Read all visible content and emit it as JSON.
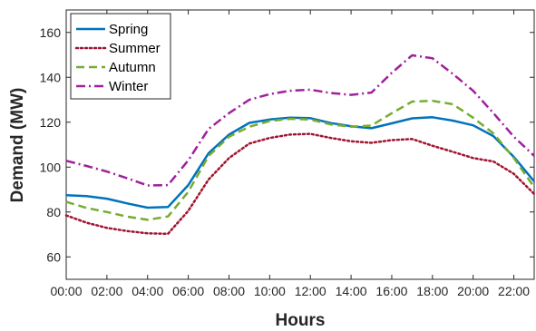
{
  "chart_data": {
    "type": "line",
    "title": "",
    "xlabel": "Hours",
    "ylabel": "Demand (MW)",
    "x": [
      0,
      1,
      2,
      3,
      4,
      5,
      6,
      7,
      8,
      9,
      10,
      11,
      12,
      13,
      14,
      15,
      16,
      17,
      18,
      19,
      20,
      21,
      22,
      23
    ],
    "xticks": [
      0,
      2,
      4,
      6,
      8,
      10,
      12,
      14,
      16,
      18,
      20,
      22
    ],
    "xtick_labels": [
      "00:00",
      "02:00",
      "04:00",
      "06:00",
      "08:00",
      "10:00",
      "12:00",
      "14:00",
      "16:00",
      "18:00",
      "20:00",
      "22:00"
    ],
    "xlim": [
      0,
      23
    ],
    "ylim": [
      50,
      170
    ],
    "yticks": [
      60,
      80,
      100,
      120,
      140,
      160
    ],
    "ytick_labels": [
      "60",
      "80",
      "100",
      "120",
      "140",
      "160"
    ],
    "grid": false,
    "legend_position": "top-left",
    "series": [
      {
        "name": "Spring",
        "color": "#0072BD",
        "style": "solid",
        "values": [
          87.5,
          87.1,
          85.9,
          83.8,
          81.9,
          82.2,
          92.0,
          106.2,
          114.5,
          119.7,
          121.2,
          122.0,
          121.8,
          119.6,
          118.2,
          117.3,
          119.5,
          121.7,
          122.2,
          120.7,
          118.6,
          113.8,
          104.5,
          93.6
        ]
      },
      {
        "name": "Summer",
        "color": "#A2142F",
        "style": "dotted",
        "values": [
          78.5,
          75.2,
          72.9,
          71.5,
          70.5,
          70.3,
          80.5,
          94.5,
          104.0,
          110.5,
          113.0,
          114.5,
          114.8,
          113.0,
          111.5,
          110.8,
          112.0,
          112.5,
          109.5,
          106.8,
          104.0,
          102.5,
          97.0,
          88.0
        ]
      },
      {
        "name": "Autumn",
        "color": "#77AC30",
        "style": "dashed",
        "values": [
          84.5,
          81.8,
          80.0,
          77.9,
          76.5,
          78.0,
          89.0,
          105.0,
          113.5,
          118.0,
          120.5,
          121.5,
          121.2,
          119.0,
          118.0,
          118.5,
          124.0,
          129.2,
          129.5,
          128.0,
          122.0,
          115.0,
          104.0,
          91.0
        ]
      },
      {
        "name": "Winter",
        "color": "#A0209C",
        "style": "dashdot",
        "values": [
          102.8,
          100.5,
          98.0,
          95.0,
          91.8,
          92.0,
          103.0,
          117.0,
          124.0,
          130.0,
          132.5,
          134.0,
          134.5,
          133.0,
          132.2,
          133.2,
          142.0,
          149.8,
          148.5,
          141.5,
          134.0,
          124.0,
          113.5,
          105.0
        ]
      }
    ]
  }
}
